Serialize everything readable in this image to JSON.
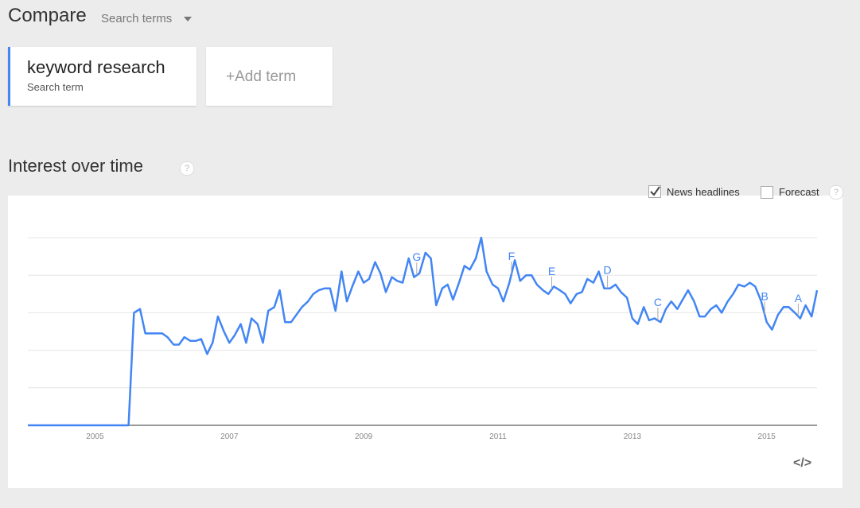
{
  "header": {
    "title": "Compare",
    "dropdown": "Search terms"
  },
  "terms": [
    {
      "name": "keyword research",
      "subtitle": "Search term"
    }
  ],
  "add_term": {
    "plus": "+",
    "label": "Add term"
  },
  "section": {
    "title": "Interest over time",
    "help": "?"
  },
  "options": {
    "news": "News headlines",
    "forecast": "Forecast",
    "help": "?"
  },
  "embed": "</>",
  "chart_data": {
    "type": "line",
    "color": "#4285f4",
    "grid": true,
    "xlim": [
      2004,
      2015.75
    ],
    "ylim": [
      0,
      100
    ],
    "yticks": [
      0,
      20,
      40,
      60,
      80,
      100
    ],
    "xticks": [
      2005,
      2007,
      2009,
      2011,
      2013,
      2015
    ],
    "x": [
      2004,
      2004.08,
      2004.17,
      2004.25,
      2004.33,
      2004.42,
      2004.5,
      2004.58,
      2004.67,
      2004.75,
      2004.83,
      2004.92,
      2005,
      2005.08,
      2005.17,
      2005.25,
      2005.33,
      2005.42,
      2005.5,
      2005.58,
      2005.67,
      2005.75,
      2005.83,
      2005.92,
      2006,
      2006.08,
      2006.17,
      2006.25,
      2006.33,
      2006.42,
      2006.5,
      2006.58,
      2006.67,
      2006.75,
      2006.83,
      2006.92,
      2007,
      2007.08,
      2007.17,
      2007.25,
      2007.33,
      2007.42,
      2007.5,
      2007.58,
      2007.67,
      2007.75,
      2007.83,
      2007.92,
      2008,
      2008.08,
      2008.17,
      2008.25,
      2008.33,
      2008.42,
      2008.5,
      2008.58,
      2008.67,
      2008.75,
      2008.83,
      2008.92,
      2009,
      2009.08,
      2009.17,
      2009.25,
      2009.33,
      2009.42,
      2009.5,
      2009.58,
      2009.67,
      2009.75,
      2009.83,
      2009.92,
      2010,
      2010.08,
      2010.17,
      2010.25,
      2010.33,
      2010.42,
      2010.5,
      2010.58,
      2010.67,
      2010.75,
      2010.83,
      2010.92,
      2011,
      2011.08,
      2011.17,
      2011.25,
      2011.33,
      2011.42,
      2011.5,
      2011.58,
      2011.67,
      2011.75,
      2011.83,
      2011.92,
      2012,
      2012.08,
      2012.17,
      2012.25,
      2012.33,
      2012.42,
      2012.5,
      2012.58,
      2012.67,
      2012.75,
      2012.83,
      2012.92,
      2013,
      2013.08,
      2013.17,
      2013.25,
      2013.33,
      2013.42,
      2013.5,
      2013.58,
      2013.67,
      2013.75,
      2013.83,
      2013.92,
      2014,
      2014.08,
      2014.17,
      2014.25,
      2014.33,
      2014.42,
      2014.5,
      2014.58,
      2014.67,
      2014.75,
      2014.83,
      2014.92,
      2015,
      2015.08,
      2015.17,
      2015.25,
      2015.33,
      2015.42,
      2015.5,
      2015.58,
      2015.67,
      2015.75
    ],
    "values": [
      0,
      0,
      0,
      0,
      0,
      0,
      0,
      0,
      0,
      0,
      0,
      0,
      0,
      0,
      0,
      0,
      0,
      0,
      0,
      60,
      62,
      49,
      49,
      49,
      49,
      47,
      43,
      43,
      47,
      45,
      45,
      46,
      38,
      44,
      58,
      50,
      44,
      48,
      54,
      44,
      57,
      54,
      44,
      61,
      63,
      72,
      55,
      55,
      59,
      63,
      66,
      70,
      72,
      73,
      73,
      61,
      82,
      66,
      74,
      82,
      76,
      78,
      87,
      81,
      71,
      79,
      77,
      76,
      89,
      79,
      81,
      92,
      89,
      64,
      73,
      75,
      67,
      76,
      85,
      83,
      89,
      100,
      82,
      75,
      73,
      66,
      76,
      88,
      77,
      80,
      80,
      75,
      72,
      70,
      74,
      72,
      70,
      65,
      70,
      71,
      78,
      76,
      82,
      73,
      73,
      75,
      71,
      68,
      57,
      54,
      63,
      56,
      57,
      55,
      62,
      66,
      62,
      67,
      72,
      66,
      58,
      58,
      62,
      64,
      60,
      66,
      70,
      75,
      74,
      76,
      74,
      66,
      55,
      51,
      59,
      63,
      63,
      60,
      57,
      64,
      58,
      72
    ],
    "annotations": [
      {
        "label": "G",
        "x": 2009.79
      },
      {
        "label": "F",
        "x": 2011.2
      },
      {
        "label": "E",
        "x": 2011.8
      },
      {
        "label": "D",
        "x": 2012.63
      },
      {
        "label": "C",
        "x": 2013.38
      },
      {
        "label": "B",
        "x": 2014.97
      },
      {
        "label": "A",
        "x": 2015.47
      }
    ]
  }
}
